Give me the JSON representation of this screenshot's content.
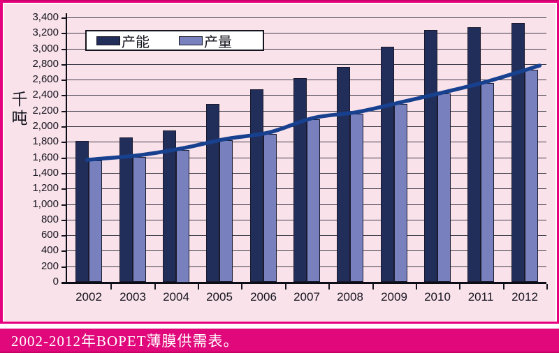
{
  "chart": {
    "unit_label": "千吨",
    "legend": [
      {
        "label": "产能",
        "color": "#222e5a"
      },
      {
        "label": "产量",
        "color": "#7881be"
      }
    ]
  },
  "caption": "2002-2012年BOPET薄膜供需表。",
  "colors": {
    "panel_bg": "#fae2ea",
    "frame_magenta": "#e6007e",
    "caption_bg": "#e0087b",
    "capacity_bar": "#222e5a",
    "production_bar": "#7881be",
    "bar_outline": "#1a1a2e",
    "trend_line": "#17418f",
    "gridline": "#3a3a46",
    "axis": "#0d0d18",
    "caption_text": "#ffffff"
  },
  "chart_data": {
    "type": "bar",
    "title": "2002-2012年BOPET薄膜供需表",
    "categories": [
      "2002",
      "2003",
      "2004",
      "2005",
      "2006",
      "2007",
      "2008",
      "2009",
      "2010",
      "2011",
      "2012"
    ],
    "series": [
      {
        "name": "产能",
        "color": "#222e5a",
        "values": [
          1810,
          1860,
          1950,
          2290,
          2480,
          2620,
          2760,
          3020,
          3240,
          3270,
          3330
        ]
      },
      {
        "name": "产量",
        "color": "#7881be",
        "values": [
          1560,
          1610,
          1700,
          1820,
          1905,
          2090,
          2165,
          2290,
          2420,
          2560,
          2730
        ]
      }
    ],
    "trend_line": {
      "name": "产量趋势线",
      "follows_series": "产量",
      "color": "#17418f"
    },
    "xlabel": "",
    "ylabel": "千吨",
    "ylim": [
      0,
      3400
    ],
    "ytick_step": 200,
    "grid": true,
    "legend_position": "top-left"
  }
}
